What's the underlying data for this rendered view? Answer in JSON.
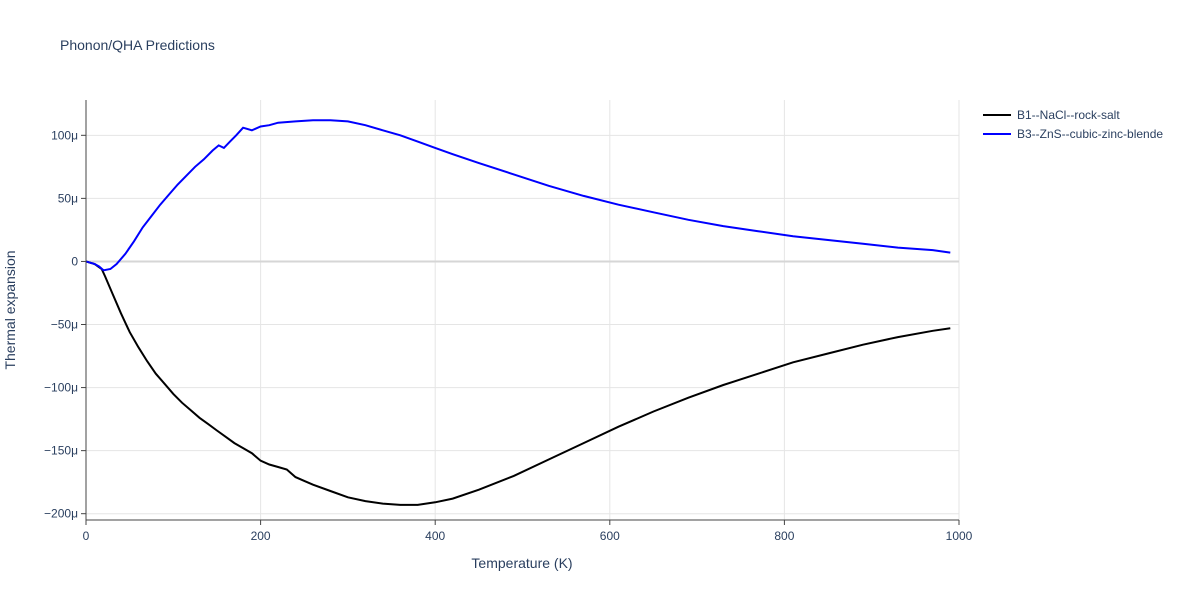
{
  "chart_data": {
    "type": "line",
    "title": "Phonon/QHA Predictions",
    "xlabel": "Temperature (K)",
    "ylabel": "Thermal expansion",
    "xlim": [
      0,
      1000
    ],
    "ylim": [
      -0.000205,
      0.000128
    ],
    "x_ticks": [
      0,
      200,
      400,
      600,
      800,
      1000
    ],
    "x_tick_labels": [
      "0",
      "200",
      "400",
      "600",
      "800",
      "1000"
    ],
    "y_ticks": [
      0.0001,
      5e-05,
      0,
      -5e-05,
      -0.0001,
      -0.00015,
      -0.0002
    ],
    "y_tick_labels": [
      "100μ",
      "50μ",
      "0",
      "−50μ",
      "−100μ",
      "−150μ",
      "−200μ"
    ],
    "grid": true,
    "legend_position": "top-right",
    "series": [
      {
        "name": "B1--NaCl--rock-salt",
        "color": "#000000",
        "x": [
          0,
          10,
          18,
          22,
          30,
          40,
          50,
          60,
          70,
          80,
          90,
          100,
          110,
          120,
          130,
          140,
          150,
          160,
          170,
          180,
          190,
          200,
          210,
          220,
          230,
          240,
          250,
          260,
          280,
          300,
          320,
          340,
          360,
          380,
          400,
          420,
          450,
          490,
          530,
          570,
          610,
          650,
          690,
          730,
          770,
          810,
          850,
          890,
          930,
          970,
          990
        ],
        "y": [
          0,
          -2e-06,
          -6e-06,
          -1.2e-05,
          -2.5e-05,
          -4.1e-05,
          -5.6e-05,
          -6.8e-05,
          -7.9e-05,
          -8.9e-05,
          -9.7e-05,
          -0.000105,
          -0.000112,
          -0.000118,
          -0.000124,
          -0.000129,
          -0.000134,
          -0.000139,
          -0.000144,
          -0.000148,
          -0.000152,
          -0.000158,
          -0.000161,
          -0.000163,
          -0.000165,
          -0.000171,
          -0.000174,
          -0.000177,
          -0.000182,
          -0.000187,
          -0.00019,
          -0.000192,
          -0.000193,
          -0.000193,
          -0.000191,
          -0.000188,
          -0.000181,
          -0.00017,
          -0.000157,
          -0.000144,
          -0.000131,
          -0.000119,
          -0.000108,
          -9.8e-05,
          -8.9e-05,
          -8e-05,
          -7.3e-05,
          -6.6e-05,
          -6e-05,
          -5.5e-05,
          -5.3e-05
        ]
      },
      {
        "name": "B3--ZnS--cubic-zinc-blende",
        "color": "#0000ff",
        "x": [
          0,
          10,
          15,
          20,
          28,
          35,
          45,
          55,
          65,
          75,
          85,
          95,
          105,
          115,
          125,
          135,
          145,
          152,
          158,
          165,
          172,
          180,
          190,
          200,
          210,
          220,
          240,
          260,
          280,
          300,
          320,
          340,
          360,
          380,
          400,
          420,
          450,
          490,
          530,
          570,
          610,
          650,
          690,
          730,
          770,
          810,
          850,
          890,
          930,
          970,
          990
        ],
        "y": [
          0,
          -2e-06,
          -4e-06,
          -7e-06,
          -6e-06,
          -2e-06,
          6e-06,
          1.6e-05,
          2.7e-05,
          3.6e-05,
          4.5e-05,
          5.3e-05,
          6.1e-05,
          6.8e-05,
          7.5e-05,
          8.1e-05,
          8.8e-05,
          9.2e-05,
          9e-05,
          9.5e-05,
          0.0001,
          0.000106,
          0.000104,
          0.000107,
          0.000108,
          0.00011,
          0.000111,
          0.000112,
          0.000112,
          0.000111,
          0.000108,
          0.000104,
          0.0001,
          9.5e-05,
          9e-05,
          8.5e-05,
          7.8e-05,
          6.9e-05,
          6e-05,
          5.2e-05,
          4.5e-05,
          3.9e-05,
          3.3e-05,
          2.8e-05,
          2.4e-05,
          2e-05,
          1.7e-05,
          1.4e-05,
          1.1e-05,
          9e-06,
          7e-06
        ]
      }
    ]
  }
}
